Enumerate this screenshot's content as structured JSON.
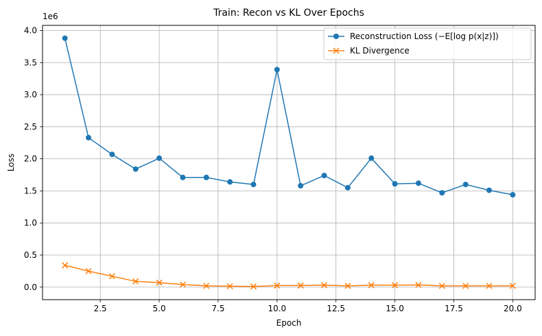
{
  "chart_data": {
    "type": "line",
    "title": "Train: Recon vs KL Over Epochs",
    "xlabel": "Epoch",
    "ylabel": "Loss",
    "y_offset_label": "1e6",
    "xlim": [
      0.05,
      20.95
    ],
    "ylim": [
      -0.195,
      4.08
    ],
    "x_ticks": [
      2.5,
      5.0,
      7.5,
      10.0,
      12.5,
      15.0,
      17.5,
      20.0
    ],
    "x_tick_labels": [
      "2.5",
      "5.0",
      "7.5",
      "10.0",
      "12.5",
      "15.0",
      "17.5",
      "20.0"
    ],
    "y_ticks": [
      0.0,
      0.5,
      1.0,
      1.5,
      2.0,
      2.5,
      3.0,
      3.5,
      4.0
    ],
    "y_tick_labels": [
      "0.0",
      "0.5",
      "1.0",
      "1.5",
      "2.0",
      "2.5",
      "3.0",
      "3.5",
      "4.0"
    ],
    "grid": true,
    "legend_position": "top-right",
    "x": [
      1,
      2,
      3,
      4,
      5,
      6,
      7,
      8,
      9,
      10,
      11,
      12,
      13,
      14,
      15,
      16,
      17,
      18,
      19,
      20
    ],
    "series": [
      {
        "name": "Reconstruction Loss (−E[log p(x|z)])",
        "color": "#1f77b4",
        "marker": "circle",
        "values": [
          3.88,
          2.33,
          2.07,
          1.84,
          2.01,
          1.71,
          1.71,
          1.64,
          1.6,
          3.39,
          1.58,
          1.74,
          1.55,
          2.01,
          1.61,
          1.62,
          1.47,
          1.6,
          1.51,
          1.44
        ]
      },
      {
        "name": "KL Divergence",
        "color": "#ff7f0e",
        "marker": "x",
        "values": [
          0.34,
          0.25,
          0.17,
          0.09,
          0.07,
          0.04,
          0.02,
          0.015,
          0.01,
          0.025,
          0.025,
          0.03,
          0.02,
          0.03,
          0.03,
          0.035,
          0.02,
          0.02,
          0.02,
          0.02
        ]
      }
    ]
  }
}
